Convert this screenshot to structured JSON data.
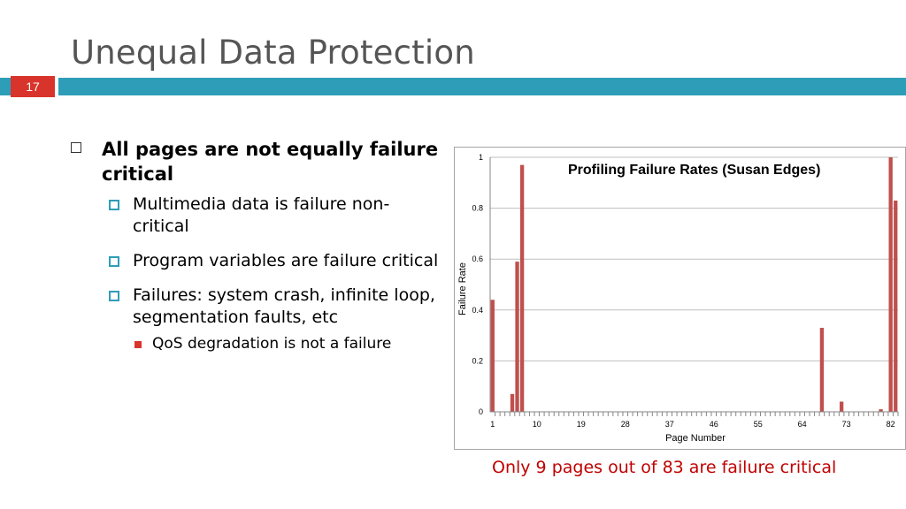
{
  "slide": {
    "title": "Unequal Data Protection",
    "number": "17",
    "accent": "#2e9db8",
    "number_bg": "#d9342b"
  },
  "bullets": {
    "l1": "All pages are not equally failure critical",
    "l2": [
      "Multimedia data is failure non-critical",
      "Program variables are failure critical",
      "Failures: system crash, infinite loop, segmentation faults, etc"
    ],
    "l3": "QoS degradation is not a failure"
  },
  "caption": "Only 9 pages out of 83 are failure critical",
  "chart_data": {
    "type": "bar",
    "title": "Profiling Failure Rates (Susan Edges)",
    "xlabel": "Page Number",
    "ylabel": "Failure Rate",
    "ylim": [
      0,
      1
    ],
    "yticks": [
      "0",
      "0.2",
      "0.4",
      "0.6",
      "0.8",
      "1"
    ],
    "xticks": [
      1,
      10,
      19,
      28,
      37,
      46,
      55,
      64,
      73,
      82
    ],
    "num_pages": 83,
    "bar_color": "#c0504d",
    "grid": true,
    "legend": "none",
    "bars": [
      {
        "x": 1,
        "y": 0.44
      },
      {
        "x": 5,
        "y": 0.07
      },
      {
        "x": 6,
        "y": 0.59
      },
      {
        "x": 7,
        "y": 0.97
      },
      {
        "x": 68,
        "y": 0.33
      },
      {
        "x": 72,
        "y": 0.04
      },
      {
        "x": 80,
        "y": 0.01
      },
      {
        "x": 82,
        "y": 1.0
      },
      {
        "x": 83,
        "y": 0.83
      }
    ]
  }
}
